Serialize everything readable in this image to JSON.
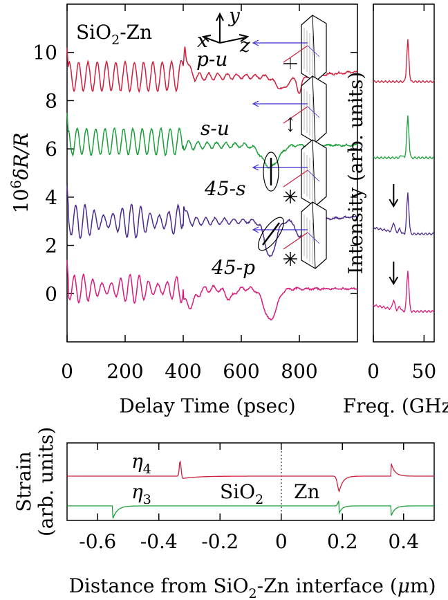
{
  "chart_data": [
    {
      "type": "line",
      "name": "main",
      "xlabel": "Delay Time (psec)",
      "ylabel_prefix": "10",
      "ylabel_exp": "6",
      "ylabel_main": "δR/R",
      "xlim": [
        0,
        1000
      ],
      "ylim": [
        -2,
        12
      ],
      "xticks": [
        0,
        200,
        400,
        600,
        800
      ],
      "yticks": [
        0,
        2,
        4,
        6,
        8,
        10
      ],
      "sample_label": {
        "a": "SiO",
        "sub": "2",
        "b": "-Zn"
      },
      "axes_labels": {
        "x": "x",
        "y": "y",
        "z": "z"
      },
      "series": [
        {
          "label": "p-u",
          "color": "#d01f3c",
          "baseline": 9.0,
          "osc_amp": 0.6,
          "end_value": 9.2
        },
        {
          "label": "s-u",
          "color": "#1a9e3a",
          "baseline": 6.3,
          "osc_amp": 0.55,
          "end_value": 6.3
        },
        {
          "label": "45-s",
          "color": "#4b2a8c",
          "baseline": 3.3,
          "osc_amp": 0.6,
          "end_value": 3.5
        },
        {
          "label": "45-p",
          "color": "#d81b7b",
          "baseline": 0.2,
          "osc_amp": 0.5,
          "end_value": 0.2
        }
      ]
    },
    {
      "type": "line",
      "name": "spectrum",
      "xlabel": "Freq. (GHz)",
      "ylabel": "Intensity (arb. units)",
      "xlim": [
        0,
        60
      ],
      "xticks": [
        0,
        50
      ],
      "peak_freq": 34,
      "arrow_freq": 20
    },
    {
      "type": "line",
      "name": "strain",
      "xlabel_a": "Distance from SiO",
      "xlabel_sub": "2",
      "xlabel_b": "-Zn interface (",
      "xlabel_mu": "μ",
      "xlabel_c": "m)",
      "ylabel_1": "Strain",
      "ylabel_2": "(arb. units)",
      "xlim": [
        -0.7,
        0.5
      ],
      "xticks": [
        "-0.6",
        "-0.4",
        "-0.2",
        "0",
        "0.2",
        "0.4"
      ],
      "xtick_values": [
        -0.6,
        -0.4,
        -0.2,
        0,
        0.2,
        0.4
      ],
      "region_left": {
        "a": "SiO",
        "sub": "2"
      },
      "region_right": "Zn",
      "series": [
        {
          "label_sym": "η",
          "label_sub": "4",
          "color": "#d01f3c"
        },
        {
          "label_sym": "η",
          "label_sub": "3",
          "color": "#1a9e3a"
        }
      ]
    }
  ]
}
